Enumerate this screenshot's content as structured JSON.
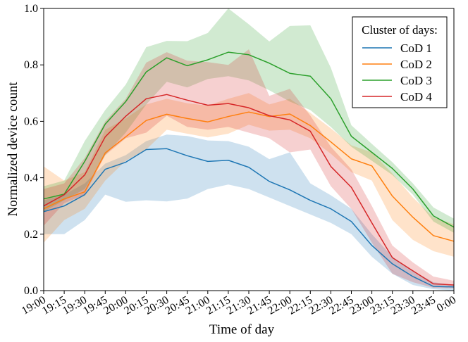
{
  "chart_data": {
    "type": "line",
    "title": "",
    "xlabel": "Time of day",
    "ylabel": "Normalized device count",
    "ylim": [
      0,
      1.0
    ],
    "yticks": [
      "0.0",
      "0.2",
      "0.4",
      "0.6",
      "0.8",
      "1.0"
    ],
    "categories": [
      "19:00",
      "19:15",
      "19:30",
      "19:45",
      "20:00",
      "20:15",
      "20:30",
      "20:45",
      "21:00",
      "21:15",
      "21:30",
      "21:45",
      "22:00",
      "22:15",
      "22:30",
      "22:45",
      "23:00",
      "23:15",
      "23:30",
      "23:45",
      "0:00"
    ],
    "legend_title": "Cluster of days:",
    "legend_position": "top-right",
    "series": [
      {
        "name": "CoD 1",
        "color": "#1f77b4",
        "values": [
          0.28,
          0.3,
          0.34,
          0.43,
          0.455,
          0.5,
          0.503,
          0.478,
          0.458,
          0.462,
          0.437,
          0.387,
          0.357,
          0.32,
          0.29,
          0.245,
          0.16,
          0.095,
          0.05,
          0.015,
          0.013
        ],
        "lower": [
          0.2,
          0.2,
          0.25,
          0.34,
          0.315,
          0.32,
          0.316,
          0.326,
          0.36,
          0.376,
          0.36,
          0.33,
          0.3,
          0.27,
          0.24,
          0.2,
          0.12,
          0.06,
          0.02,
          0.005,
          0.0
        ],
        "upper": [
          0.32,
          0.34,
          0.38,
          0.45,
          0.48,
          0.53,
          0.553,
          0.548,
          0.532,
          0.53,
          0.51,
          0.466,
          0.49,
          0.38,
          0.338,
          0.29,
          0.2,
          0.12,
          0.07,
          0.03,
          0.02
        ]
      },
      {
        "name": "CoD 2",
        "color": "#ff7f0e",
        "values": [
          0.29,
          0.325,
          0.35,
          0.488,
          0.545,
          0.603,
          0.625,
          0.61,
          0.598,
          0.617,
          0.633,
          0.617,
          0.626,
          0.585,
          0.527,
          0.467,
          0.442,
          0.335,
          0.26,
          0.195,
          0.175
        ],
        "lower": [
          0.17,
          0.25,
          0.29,
          0.39,
          0.46,
          0.5,
          0.57,
          0.556,
          0.543,
          0.556,
          0.588,
          0.567,
          0.57,
          0.54,
          0.485,
          0.42,
          0.39,
          0.25,
          0.18,
          0.14,
          0.12
        ],
        "upper": [
          0.44,
          0.39,
          0.42,
          0.57,
          0.61,
          0.66,
          0.68,
          0.664,
          0.656,
          0.68,
          0.7,
          0.66,
          0.68,
          0.63,
          0.575,
          0.515,
          0.49,
          0.415,
          0.33,
          0.26,
          0.235
        ]
      },
      {
        "name": "CoD 3",
        "color": "#2ca02c",
        "values": [
          0.325,
          0.342,
          0.458,
          0.59,
          0.67,
          0.775,
          0.825,
          0.797,
          0.818,
          0.845,
          0.836,
          0.806,
          0.77,
          0.76,
          0.68,
          0.547,
          0.49,
          0.433,
          0.36,
          0.265,
          0.225
        ],
        "lower": [
          0.28,
          0.32,
          0.36,
          0.48,
          0.56,
          0.66,
          0.74,
          0.72,
          0.75,
          0.76,
          0.745,
          0.71,
          0.67,
          0.64,
          0.58,
          0.51,
          0.46,
          0.41,
          0.34,
          0.245,
          0.205
        ],
        "upper": [
          0.37,
          0.39,
          0.53,
          0.64,
          0.73,
          0.863,
          0.885,
          0.884,
          0.913,
          1.0,
          0.944,
          0.883,
          0.938,
          0.94,
          0.79,
          0.586,
          0.52,
          0.455,
          0.38,
          0.295,
          0.255
        ]
      },
      {
        "name": "CoD 4",
        "color": "#d62728",
        "values": [
          0.3,
          0.34,
          0.41,
          0.545,
          0.618,
          0.68,
          0.695,
          0.675,
          0.657,
          0.663,
          0.648,
          0.62,
          0.605,
          0.565,
          0.44,
          0.366,
          0.24,
          0.117,
          0.07,
          0.024,
          0.02
        ],
        "lower": [
          0.23,
          0.31,
          0.34,
          0.48,
          0.54,
          0.56,
          0.62,
          0.58,
          0.57,
          0.58,
          0.56,
          0.54,
          0.49,
          0.5,
          0.37,
          0.29,
          0.17,
          0.06,
          0.03,
          0.01,
          0.008
        ],
        "upper": [
          0.36,
          0.38,
          0.47,
          0.6,
          0.68,
          0.808,
          0.845,
          0.815,
          0.81,
          0.8,
          0.855,
          0.69,
          0.715,
          0.62,
          0.51,
          0.43,
          0.3,
          0.16,
          0.1,
          0.05,
          0.035
        ]
      }
    ]
  }
}
